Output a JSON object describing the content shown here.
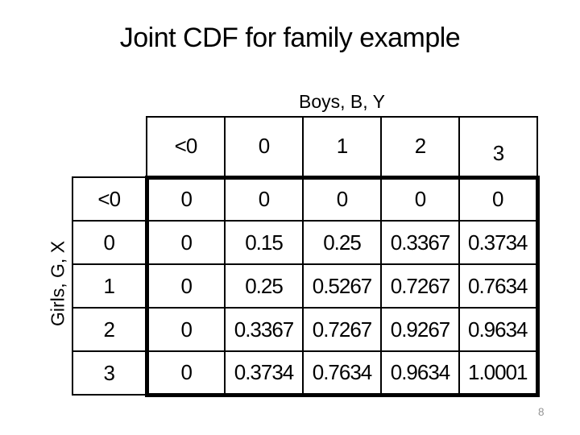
{
  "slide": {
    "title": "Joint CDF for family example",
    "page_number": "8"
  },
  "table": {
    "column_axis_label": "Boys, B, Y",
    "row_axis_label": "Girls, G, X",
    "column_headers": [
      "<0",
      "0",
      "1",
      "2",
      "3"
    ],
    "row_headers": [
      "<0",
      "0",
      "1",
      "2",
      "3"
    ],
    "rows": [
      [
        "0",
        "0",
        "0",
        "0",
        "0"
      ],
      [
        "0",
        "0.15",
        "0.25",
        "0.3367",
        "0.3734"
      ],
      [
        "0",
        "0.25",
        "0.5267",
        "0.7267",
        "0.7634"
      ],
      [
        "0",
        "0.3367",
        "0.7267",
        "0.9267",
        "0.9634"
      ],
      [
        "0",
        "0.3734",
        "0.7634",
        "0.9634",
        "1.0001"
      ]
    ]
  },
  "chart_data": {
    "type": "table",
    "title": "Joint CDF for family example",
    "xlabel": "Boys, B, Y",
    "ylabel": "Girls, G, X",
    "categories_x": [
      "<0",
      "0",
      "1",
      "2",
      "3"
    ],
    "categories_y": [
      "<0",
      "0",
      "1",
      "2",
      "3"
    ],
    "values": [
      [
        0,
        0,
        0,
        0,
        0
      ],
      [
        0,
        0.15,
        0.25,
        0.3367,
        0.3734
      ],
      [
        0,
        0.25,
        0.5267,
        0.7267,
        0.7634
      ],
      [
        0,
        0.3367,
        0.7267,
        0.9267,
        0.9634
      ],
      [
        0,
        0.3734,
        0.7634,
        0.9634,
        1.0001
      ]
    ]
  },
  "colors": {
    "background": "#ffffff",
    "text": "#000000",
    "border": "#000000",
    "page_number": "#959595"
  }
}
